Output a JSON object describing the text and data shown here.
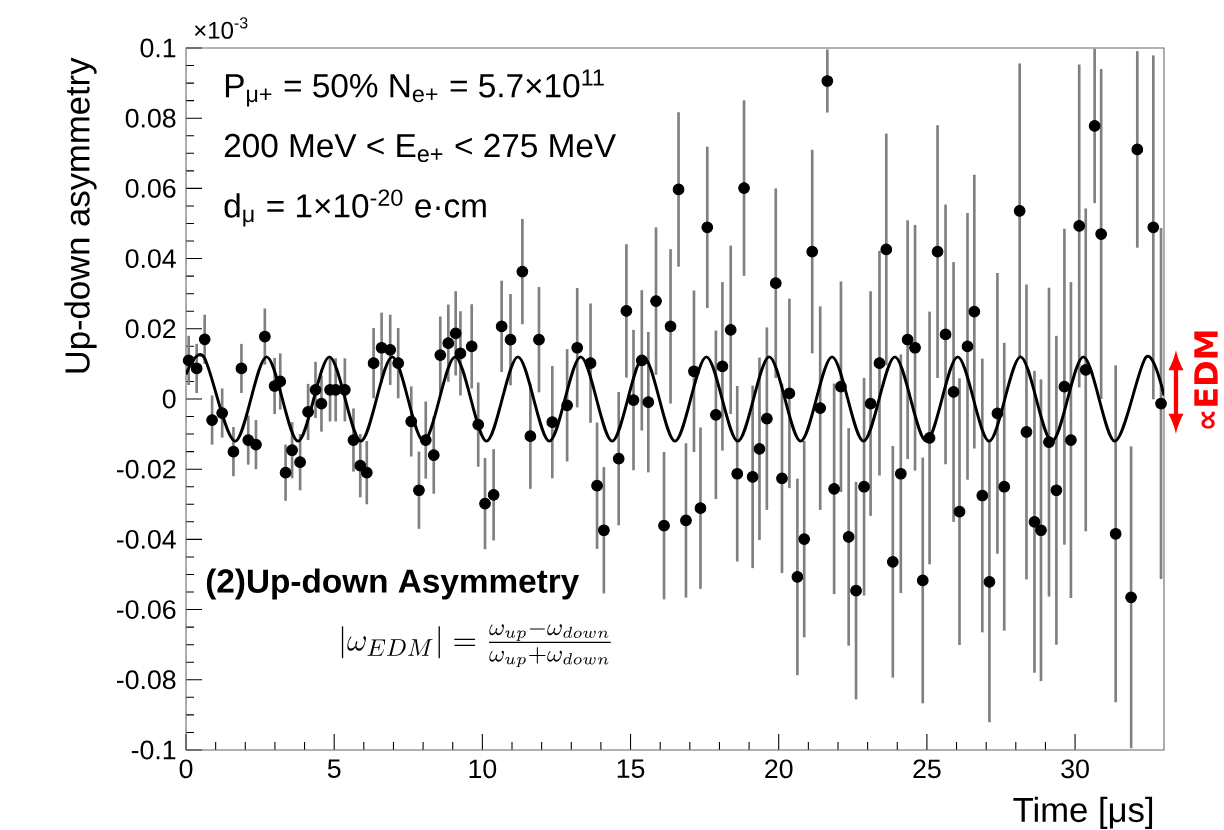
{
  "chart_data": {
    "type": "scatter",
    "xlabel": "Time [μs]",
    "ylabel": "Up-down asymmetry",
    "xlim": [
      0,
      33
    ],
    "ylim": [
      -0.1,
      0.1
    ],
    "xticks": [
      0,
      5,
      10,
      15,
      20,
      25,
      30
    ],
    "yticks": [
      -0.1,
      -0.08,
      -0.06,
      -0.04,
      -0.02,
      0,
      0.02,
      0.04,
      0.06,
      0.08,
      0.1
    ],
    "line_style": "solid",
    "annotations": [
      "P$_{μ+}$ = 50%  N$_{e+}$ = 5.7×10$^{11}$",
      "200 MeV < E$_{e+}$ < 275 MeV",
      "d$_{μ}$ = 1×10$^{-20}$ e·cm",
      "(2)Up-down Asymmetry",
      "|\\omega_{EDM}| = \\frac{\\omega_{up} - \\omega_{down}}{\\omega_{up} + \\omega_{down}}",
      "×10$^{-3}$",
      "∝EDM"
    ],
    "series": [
      {
        "marker": "circle",
        "color": "#000000",
        "x": [
          0.09,
          0.36,
          0.63,
          0.88,
          1.22,
          1.6,
          1.87,
          2.1,
          2.36,
          2.66,
          2.99,
          3.18,
          3.36,
          3.58,
          3.85,
          4.12,
          4.37,
          4.57,
          4.86,
          5.05,
          5.36,
          5.65,
          5.88,
          6.1,
          6.33,
          6.6,
          6.89,
          7.16,
          7.6,
          7.86,
          8.09,
          8.36,
          8.58,
          8.85,
          9.1,
          9.26,
          9.64,
          9.86,
          10.09,
          10.38,
          10.65,
          10.95,
          11.35,
          11.62,
          11.91,
          12.36,
          12.86,
          13.2,
          13.65,
          13.87,
          14.1,
          14.6,
          14.86,
          15.1,
          15.38,
          15.6,
          15.86,
          16.13,
          16.35,
          16.62,
          16.87,
          17.14,
          17.36,
          17.59,
          17.88,
          18.1,
          18.38,
          18.6,
          18.83,
          19.12,
          19.35,
          19.6,
          19.9,
          20.11,
          20.36,
          20.63,
          20.86,
          21.13,
          21.4,
          21.64,
          21.87,
          22.1,
          22.36,
          22.61,
          22.88,
          23.1,
          23.4,
          23.63,
          23.85,
          24.12,
          24.35,
          24.6,
          24.86,
          25.09,
          25.36,
          25.63,
          25.9,
          26.1,
          26.37,
          26.6,
          26.87,
          27.11,
          27.38,
          27.61,
          28.13,
          28.36,
          28.63,
          28.85,
          29.12,
          29.37,
          29.64,
          29.86,
          30.14,
          30.36,
          30.66,
          30.88,
          31.37,
          31.89,
          32.1,
          32.64,
          32.9
        ],
        "values": [
          0.011,
          0.0087,
          0.017,
          -0.006,
          -0.004,
          -0.015,
          0.0087,
          -0.0117,
          -0.013,
          0.0178,
          0.0037,
          0.005,
          -0.021,
          -0.0146,
          -0.018,
          -0.0037,
          0.0026,
          -0.0013,
          0.0026,
          0.0026,
          0.0026,
          -0.0117,
          -0.019,
          -0.021,
          0.0102,
          0.0146,
          0.014,
          0.0102,
          -0.0064,
          -0.026,
          -0.0117,
          -0.016,
          0.0125,
          0.0159,
          0.0187,
          0.013,
          0.015,
          -0.0073,
          -0.0298,
          -0.0273,
          0.0207,
          0.0169,
          0.0363,
          -0.0106,
          0.0169,
          -0.0066,
          -0.0018,
          0.0146,
          0.0102,
          -0.0247,
          -0.0374,
          -0.017,
          0.0251,
          -0.0003,
          0.011,
          -0.0009,
          0.0279,
          -0.0361,
          0.0207,
          0.0597,
          -0.0346,
          0.0079,
          -0.0311,
          0.0489,
          -0.0045,
          0.0093,
          0.0197,
          -0.0213,
          0.0601,
          -0.0222,
          -0.0142,
          -0.0056,
          0.033,
          -0.0226,
          0.0016,
          -0.0507,
          -0.0399,
          0.042,
          -0.0026,
          0.0906,
          -0.0256,
          0.0035,
          -0.0393,
          -0.0546,
          -0.025,
          -0.0013,
          0.0102,
          0.0426,
          -0.0464,
          -0.0213,
          0.0169,
          0.0146,
          -0.0517,
          -0.0111,
          0.042,
          0.0184,
          0.002,
          -0.0321,
          0.015,
          0.0249,
          -0.0275,
          -0.0521,
          -0.0041,
          -0.025,
          0.0536,
          -0.0094,
          -0.035,
          -0.0374,
          -0.0123,
          -0.026,
          0.0035,
          -0.0117,
          0.0493,
          0.0083,
          0.0778,
          0.047,
          -0.0384,
          -0.0565,
          0.0711,
          0.0489,
          -0.0013
        ],
        "errors": [
          0.007,
          0.007,
          0.007,
          0.007,
          0.007,
          0.007,
          0.007,
          0.007,
          0.007,
          0.008,
          0.008,
          0.008,
          0.008,
          0.008,
          0.008,
          0.008,
          0.008,
          0.008,
          0.009,
          0.009,
          0.009,
          0.009,
          0.009,
          0.009,
          0.01,
          0.01,
          0.01,
          0.01,
          0.01,
          0.011,
          0.011,
          0.011,
          0.011,
          0.011,
          0.012,
          0.012,
          0.012,
          0.012,
          0.013,
          0.013,
          0.013,
          0.013,
          0.015,
          0.015,
          0.015,
          0.016,
          0.016,
          0.017,
          0.017,
          0.018,
          0.018,
          0.019,
          0.019,
          0.02,
          0.02,
          0.02,
          0.021,
          0.021,
          0.022,
          0.022,
          0.022,
          0.023,
          0.023,
          0.023,
          0.024,
          0.024,
          0.024,
          0.025,
          0.025,
          0.026,
          0.026,
          0.026,
          0.027,
          0.027,
          0.027,
          0.028,
          0.028,
          0.029,
          0.029,
          0.009,
          0.03,
          0.03,
          0.031,
          0.031,
          0.031,
          0.032,
          0.032,
          0.033,
          0.033,
          0.034,
          0.034,
          0.035,
          0.035,
          0.036,
          0.036,
          0.037,
          0.037,
          0.038,
          0.038,
          0.039,
          0.039,
          0.04,
          0.04,
          0.041,
          0.042,
          0.042,
          0.043,
          0.043,
          0.044,
          0.044,
          0.045,
          0.045,
          0.046,
          0.046,
          0.022,
          0.047,
          0.048,
          0.043,
          0.028,
          0.049,
          0.05
        ]
      },
      {
        "type": "line",
        "marker": "none",
        "color": "#000000",
        "x": [
          0,
          0.6,
          1.66,
          2.72,
          3.78,
          4.84,
          5.9,
          6.96,
          8.02,
          9.08,
          10.14,
          11.2,
          12.26,
          13.32,
          14.38,
          15.44,
          16.5,
          17.56,
          18.62,
          19.68,
          20.74,
          21.8,
          22.86,
          23.92,
          24.98,
          26.04,
          27.1,
          28.16,
          29.22,
          30.28,
          31.34,
          32.4,
          33
        ],
        "values": [
          0.007,
          0.012,
          -0.012,
          0.012,
          -0.012,
          0.012,
          -0.012,
          0.012,
          -0.012,
          0.012,
          -0.012,
          0.012,
          -0.012,
          0.012,
          -0.012,
          0.012,
          -0.012,
          0.012,
          -0.012,
          0.012,
          -0.012,
          0.012,
          -0.012,
          0.012,
          -0.012,
          0.012,
          -0.012,
          0.012,
          -0.012,
          0.012,
          -0.012,
          0.012,
          0.001
        ]
      }
    ]
  }
}
